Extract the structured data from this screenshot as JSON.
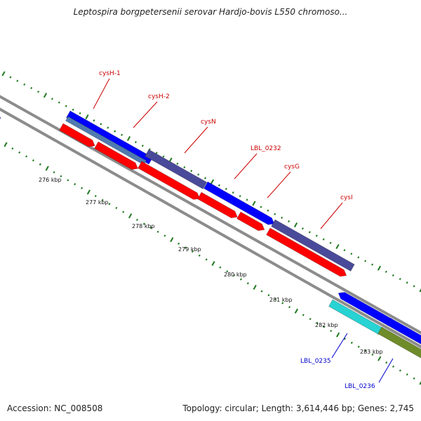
{
  "title": "Leptospira borgpetersenii serovar Hardjo-bovis L550 chromoso...",
  "footer": {
    "accession": "Accession: NC_008508",
    "summary": "Topology: circular; Length: 3,614,446 bp; Genes: 2,745"
  },
  "colors": {
    "backbone": "#8c8c8c",
    "tick": "#1f7a1f",
    "forward_cds": "#0000ff",
    "forward_cds_alt": "#4a4a9a",
    "forward_cds_steel": "#4f7bb0",
    "reverse_cds": "#ff0000",
    "cyan_cds": "#27d3d3",
    "olive_cds": "#6f8c2a",
    "label_red": "#cc0000",
    "label_blue": "#0000cc"
  },
  "scale_labels": [
    "276 kbp",
    "277 kbp",
    "278 kbp",
    "279 kbp",
    "280 kbp",
    "281 kbp",
    "282 kbp",
    "283 kbp"
  ],
  "gene_labels": [
    {
      "name": "cysH-1",
      "color": "red"
    },
    {
      "name": "cysH-2",
      "color": "red"
    },
    {
      "name": "cysN",
      "color": "red"
    },
    {
      "name": "LBL_0232",
      "color": "red"
    },
    {
      "name": "cysG",
      "color": "red"
    },
    {
      "name": "cysI",
      "color": "red"
    },
    {
      "name": "LBL_0235",
      "color": "blue"
    },
    {
      "name": "LBL_0236",
      "color": "blue"
    }
  ]
}
